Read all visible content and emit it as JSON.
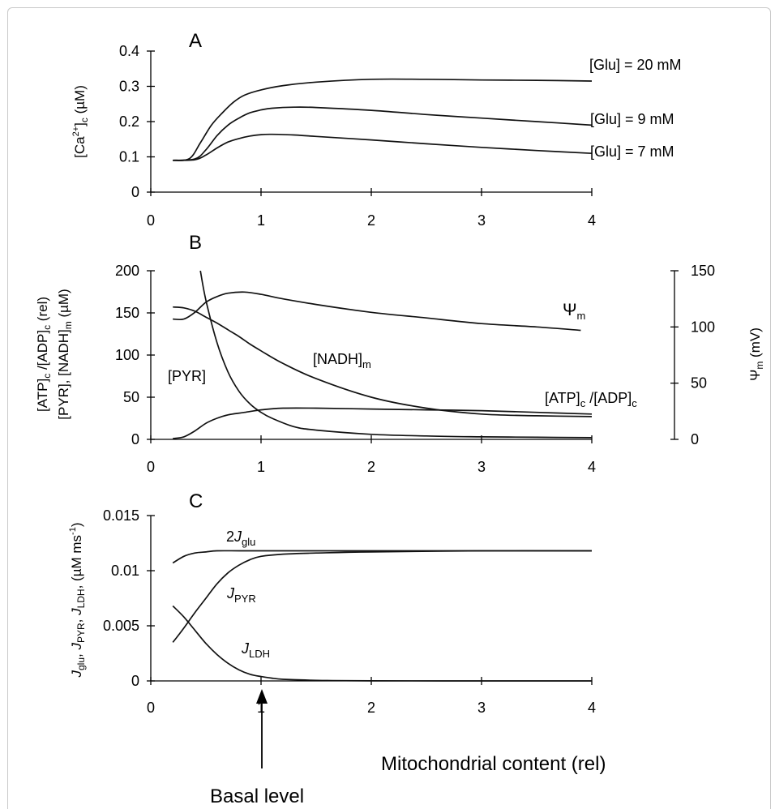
{
  "chart_data": [
    {
      "type": "line",
      "panel": "A",
      "ylabel": "[Ca2+]c (µM)",
      "xlim": [
        0,
        4
      ],
      "ylim": [
        0,
        0.4
      ],
      "xticks": [
        "0",
        "1",
        "2",
        "3",
        "4"
      ],
      "yticks": [
        "0",
        "0.1",
        "0.2",
        "0.3",
        "0.4"
      ],
      "series": [
        {
          "name": "[Glu] = 20 mM",
          "x": [
            0.2,
            0.35,
            0.45,
            0.55,
            0.65,
            0.75,
            0.85,
            1,
            1.2,
            1.5,
            2,
            2.5,
            3,
            3.5,
            4
          ],
          "y": [
            0.09,
            0.095,
            0.14,
            0.19,
            0.225,
            0.255,
            0.275,
            0.29,
            0.302,
            0.312,
            0.32,
            0.32,
            0.318,
            0.317,
            0.315
          ]
        },
        {
          "name": "[Glu] = 9 mM",
          "x": [
            0.2,
            0.4,
            0.5,
            0.6,
            0.7,
            0.8,
            0.9,
            1,
            1.1,
            1.3,
            1.5,
            2,
            2.5,
            3,
            3.5,
            4
          ],
          "y": [
            0.09,
            0.094,
            0.12,
            0.16,
            0.19,
            0.21,
            0.225,
            0.233,
            0.238,
            0.241,
            0.24,
            0.232,
            0.22,
            0.21,
            0.2,
            0.19
          ]
        },
        {
          "name": "[Glu] = 7 mM",
          "x": [
            0.2,
            0.4,
            0.5,
            0.6,
            0.7,
            0.8,
            0.9,
            1,
            1.1,
            1.3,
            1.5,
            2,
            2.5,
            3,
            3.5,
            4
          ],
          "y": [
            0.09,
            0.092,
            0.105,
            0.125,
            0.142,
            0.152,
            0.159,
            0.163,
            0.164,
            0.162,
            0.158,
            0.148,
            0.137,
            0.127,
            0.118,
            0.11
          ]
        }
      ]
    },
    {
      "type": "line",
      "panel": "B",
      "ylabel_line1": "[ATP]c /[ADP]c (rel)",
      "ylabel_line2": "[PYR], [NADH]m (µM)",
      "y2label": "Ψm (mV)",
      "xlim": [
        0,
        4
      ],
      "ylim": [
        0,
        200
      ],
      "y2lim": [
        0,
        150
      ],
      "xticks": [
        "0",
        "1",
        "2",
        "3",
        "4"
      ],
      "yticks": [
        "0",
        "50",
        "100",
        "150",
        "200"
      ],
      "y2ticks": [
        "0",
        "50",
        "100",
        "150"
      ],
      "series": [
        {
          "name": "Ψm",
          "axis": "right",
          "x": [
            0.2,
            0.3,
            0.4,
            0.5,
            0.6,
            0.7,
            0.85,
            1,
            1.2,
            1.5,
            2,
            2.5,
            3,
            3.5,
            3.9
          ],
          "y": [
            107,
            107,
            113,
            122,
            127,
            130,
            131,
            129,
            125,
            120,
            113,
            108,
            103,
            100,
            97
          ]
        },
        {
          "name": "[NADH]m",
          "axis": "left",
          "x": [
            0.2,
            0.3,
            0.4,
            0.5,
            0.6,
            0.7,
            0.8,
            0.9,
            1,
            1.2,
            1.5,
            2,
            2.5,
            3,
            3.5,
            4
          ],
          "y": [
            157,
            156,
            152,
            145,
            138,
            130,
            122,
            113,
            105,
            90,
            72,
            50,
            37,
            30,
            28,
            27
          ]
        },
        {
          "name": "[PYR]",
          "axis": "left",
          "x": [
            0.45,
            0.5,
            0.6,
            0.7,
            0.8,
            0.9,
            1,
            1.1,
            1.3,
            1.5,
            2,
            2.5,
            3,
            3.5,
            4
          ],
          "y": [
            200,
            165,
            115,
            80,
            57,
            42,
            32,
            25,
            15,
            11,
            6,
            4,
            3,
            2.5,
            2
          ]
        },
        {
          "name": "[ATP]c/[ADP]c",
          "axis": "left",
          "x": [
            0.2,
            0.3,
            0.4,
            0.5,
            0.6,
            0.7,
            0.85,
            1,
            1.2,
            1.5,
            2,
            2.5,
            3,
            3.5,
            4
          ],
          "y": [
            1,
            3,
            10,
            19,
            25,
            29,
            32,
            35,
            37,
            37,
            36,
            35,
            34,
            32,
            30
          ]
        }
      ]
    },
    {
      "type": "line",
      "panel": "C",
      "ylabel": "Jglu, JPYR, JLDH, (µM ms-1)",
      "xlim": [
        0,
        4
      ],
      "ylim": [
        0,
        0.015
      ],
      "xticks": [
        "0",
        "1",
        "2",
        "3",
        "4"
      ],
      "yticks": [
        "0",
        "0.005",
        "0.01",
        "0.015"
      ],
      "series": [
        {
          "name": "2Jglu",
          "x": [
            0.2,
            0.3,
            0.4,
            0.5,
            0.6,
            0.8,
            1,
            1.5,
            2,
            3,
            4
          ],
          "y": [
            0.0107,
            0.0113,
            0.0116,
            0.0117,
            0.0118,
            0.0118,
            0.0118,
            0.0118,
            0.0118,
            0.0118,
            0.0118
          ]
        },
        {
          "name": "JPYR",
          "x": [
            0.2,
            0.3,
            0.4,
            0.5,
            0.6,
            0.7,
            0.8,
            0.9,
            1,
            1.2,
            1.5,
            2,
            3,
            4
          ],
          "y": [
            0.0035,
            0.0048,
            0.0062,
            0.0075,
            0.0088,
            0.0098,
            0.0105,
            0.011,
            0.0113,
            0.0115,
            0.0116,
            0.0117,
            0.0118,
            0.0118
          ]
        },
        {
          "name": "JLDH",
          "x": [
            0.2,
            0.3,
            0.4,
            0.5,
            0.6,
            0.7,
            0.8,
            0.9,
            1,
            1.1,
            1.2,
            1.4,
            1.6,
            2,
            3,
            4
          ],
          "y": [
            0.0068,
            0.0058,
            0.0046,
            0.0034,
            0.0024,
            0.0016,
            0.001,
            0.0006,
            0.0004,
            0.00025,
            0.00015,
            8e-05,
            4e-05,
            1e-05,
            0,
            0
          ]
        }
      ]
    }
  ],
  "labels": {
    "panel_a": "A",
    "panel_b": "B",
    "panel_c": "C",
    "glu20": "[Glu] = 20 mM",
    "glu9": "[Glu] = 9 mM",
    "glu7": "[Glu] = 7 mM",
    "ca_pre": "[Ca",
    "ca_sup": "2+",
    "ca_mid": "]",
    "ca_sub": "c",
    "ca_post": " (µM)",
    "psi": "Ψ",
    "m": "m",
    "c": "c",
    "nadh": "[NADH]",
    "pyr": "[PYR]",
    "atp": "[ATP]",
    "adp_mid": " /[ADP]",
    "ylb1_pre": "[ATP]",
    "ylb1_mid": " /[ADP]",
    "ylb1_post": " (rel)",
    "ylb2_pre": "[PYR], [NADH]",
    "ylb2_post": " (µM)",
    "psi_unit": " (mV)",
    "two": "2",
    "J": "J",
    "glu": "glu",
    "pyr_sub": "PYR",
    "ldh_sub": "LDH",
    "ylc_comma": ", ",
    "ylc_unit": " (µM ms",
    "ylc_exp": "-1",
    "ylc_close": ")",
    "mito": "Mitochondrial content (rel)",
    "basal": "Basal level"
  }
}
